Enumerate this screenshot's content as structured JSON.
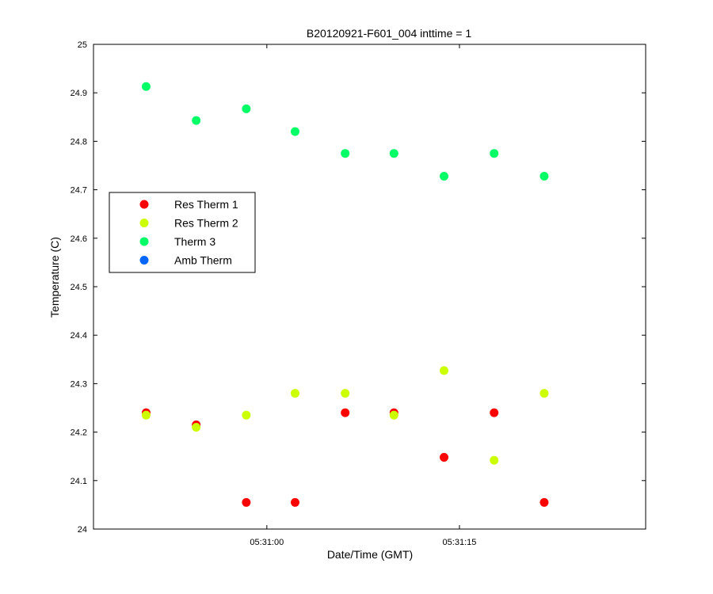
{
  "chart_data": {
    "type": "scatter",
    "title": "B20120921-F601_004 inttime = 1",
    "xlabel": "Date/Time (GMT)",
    "ylabel": "Temperature (C)",
    "xlim": [
      "05:30:46.5",
      "05:31:29.5"
    ],
    "ylim": [
      24,
      25
    ],
    "x_ticks": [
      "05:31:00",
      "05:31:15"
    ],
    "y_ticks": [
      24,
      24.1,
      24.2,
      24.3,
      24.4,
      24.5,
      24.6,
      24.7,
      24.8,
      24.9,
      25
    ],
    "grid": false,
    "legend_position": "left",
    "x": [
      "05:30:50.6",
      "05:30:54.5",
      "05:30:58.4",
      "05:31:02.2",
      "05:31:06.1",
      "05:31:09.9",
      "05:31:13.8",
      "05:31:17.7",
      "05:31:21.6"
    ],
    "series": [
      {
        "name": "Res Therm 1",
        "color": "#ff0000",
        "values": [
          24.24,
          24.215,
          24.055,
          24.055,
          24.24,
          24.24,
          24.148,
          24.24,
          24.055
        ]
      },
      {
        "name": "Res Therm 2",
        "color": "#ccff00",
        "values": [
          24.235,
          24.21,
          24.235,
          24.28,
          24.28,
          24.235,
          24.327,
          24.142,
          24.28
        ]
      },
      {
        "name": "Therm 3",
        "color": "#00ff66",
        "values": [
          24.913,
          24.843,
          24.867,
          24.82,
          24.775,
          24.775,
          24.728,
          24.775,
          24.728
        ]
      },
      {
        "name": "Amb Therm",
        "color": "#0066ff",
        "values": []
      }
    ]
  }
}
